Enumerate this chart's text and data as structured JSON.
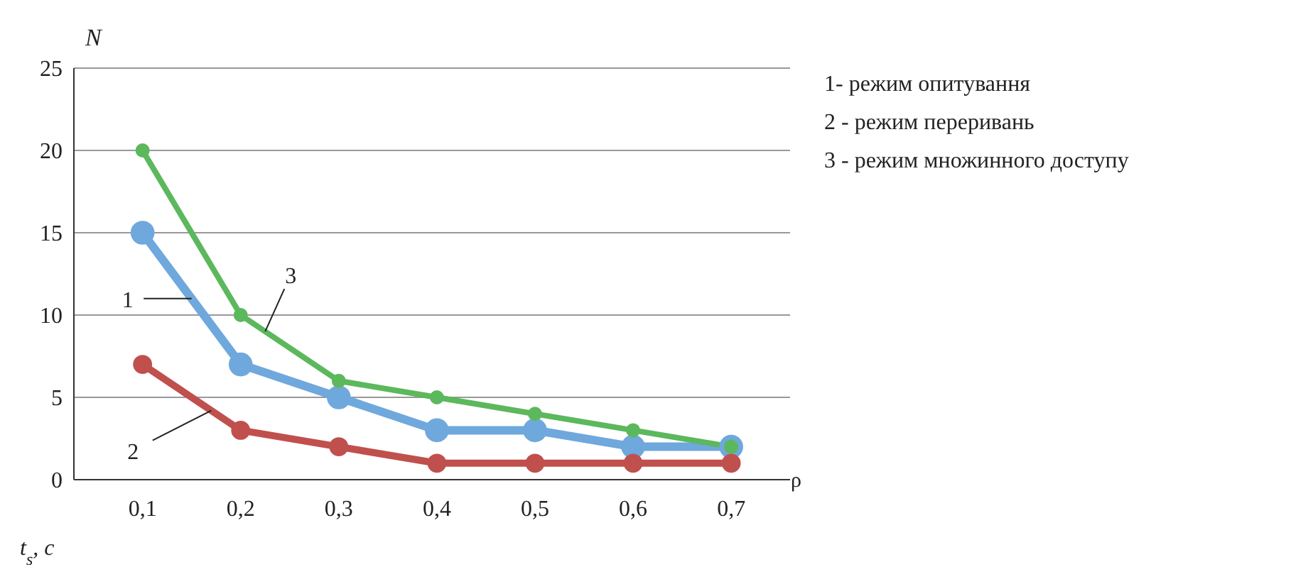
{
  "chart_data": {
    "type": "line",
    "ylabel": "N",
    "xlabel": "ρ",
    "x": [
      0.1,
      0.2,
      0.3,
      0.4,
      0.5,
      0.6,
      0.7
    ],
    "series": [
      {
        "color": "#6fa8dc",
        "values": [
          15,
          7,
          5,
          3,
          3,
          2,
          2
        ]
      },
      {
        "color": "#c0504d",
        "values": [
          7,
          3,
          2,
          1,
          1,
          1,
          1
        ]
      },
      {
        "color": "#5cb85c",
        "values": [
          20,
          10,
          6,
          5,
          4,
          3,
          2
        ]
      }
    ],
    "xlim": [
      0.03,
      0.76
    ],
    "xticks": [
      {
        "value": 0.1,
        "label": "0,1"
      },
      {
        "value": 0.2,
        "label": "0,2"
      },
      {
        "value": 0.3,
        "label": "0,3"
      },
      {
        "value": 0.4,
        "label": "0,4"
      },
      {
        "value": 0.5,
        "label": "0,5"
      },
      {
        "value": 0.6,
        "label": "0,6"
      },
      {
        "value": 0.7,
        "label": "0,7"
      }
    ],
    "ylim": [
      0,
      25
    ],
    "yticks": [
      0,
      5,
      10,
      15,
      20,
      25
    ],
    "grid": "y",
    "marker": "circle",
    "line_style": "solid",
    "annotations": [
      {
        "text": "1",
        "x": 0.15,
        "y": 11
      },
      {
        "text": "3",
        "x": 0.225,
        "y": 9
      },
      {
        "text": "2",
        "x": 0.17,
        "y": 4.2
      },
      "1- режим опитування",
      "2 - режим переривань",
      "3 - режим множинного доступу",
      "t$_{s}$, с"
    ]
  }
}
